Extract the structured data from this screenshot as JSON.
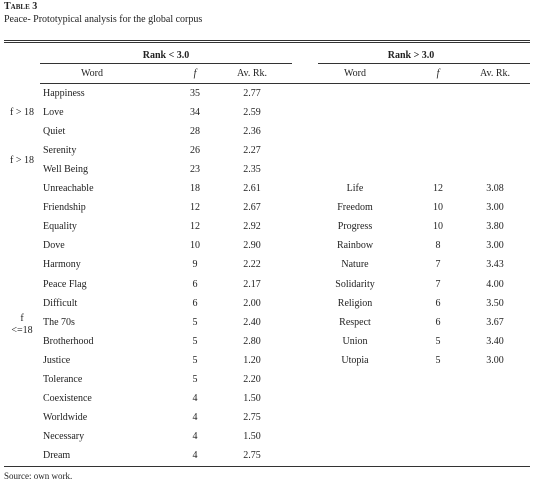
{
  "caption": {
    "label": "Table 3",
    "title": "Peace- Prototypical analysis for the global corpus"
  },
  "table": {
    "groups": [
      "Rank < 3.0",
      "Rank > 3.0"
    ],
    "columns": [
      "Word",
      "f",
      "Av. Rk.",
      "Word",
      "f",
      "Av. Rk."
    ],
    "row_groups": [
      "f > 18",
      "f > 18",
      "f\n<=18"
    ],
    "rows": [
      [
        [
          "Happiness",
          "35",
          "2.77"
        ],
        null
      ],
      [
        [
          "Love",
          "34",
          "2.59"
        ],
        null
      ],
      [
        [
          "Quiet",
          "28",
          "2.36"
        ],
        null
      ],
      [
        [
          "Serenity",
          "26",
          "2.27"
        ],
        null
      ],
      [
        [
          "Well Being",
          "23",
          "2.35"
        ],
        null
      ],
      [
        [
          "Unreachable",
          "18",
          "2.61"
        ],
        [
          "Life",
          "12",
          "3.08"
        ]
      ],
      [
        [
          "Friendship",
          "12",
          "2.67"
        ],
        [
          "Freedom",
          "10",
          "3.00"
        ]
      ],
      [
        [
          "Equality",
          "12",
          "2.92"
        ],
        [
          "Progress",
          "10",
          "3.80"
        ]
      ],
      [
        [
          "Dove",
          "10",
          "2.90"
        ],
        [
          "Rainbow",
          "8",
          "3.00"
        ]
      ],
      [
        [
          "Harmony",
          "9",
          "2.22"
        ],
        [
          "Nature",
          "7",
          "3.43"
        ]
      ],
      [
        [
          "Peace Flag",
          "6",
          "2.17"
        ],
        [
          "Solidarity",
          "7",
          "4.00"
        ]
      ],
      [
        [
          "Difficult",
          "6",
          "2.00"
        ],
        [
          "Religion",
          "6",
          "3.50"
        ]
      ],
      [
        [
          "The 70s",
          "5",
          "2.40"
        ],
        [
          "Respect",
          "6",
          "3.67"
        ]
      ],
      [
        [
          "Brotherhood",
          "5",
          "2.80"
        ],
        [
          "Union",
          "5",
          "3.40"
        ]
      ],
      [
        [
          "Justice",
          "5",
          "1.20"
        ],
        [
          "Utopia",
          "5",
          "3.00"
        ]
      ],
      [
        [
          "Tolerance",
          "5",
          "2.20"
        ],
        null
      ],
      [
        [
          "Coexistence",
          "4",
          "1.50"
        ],
        null
      ],
      [
        [
          "Worldwide",
          "4",
          "2.75"
        ],
        null
      ],
      [
        [
          "Necessary",
          "4",
          "1.50"
        ],
        null
      ],
      [
        [
          "Dream",
          "4",
          "2.75"
        ],
        null
      ]
    ]
  },
  "source": "Source: own work."
}
